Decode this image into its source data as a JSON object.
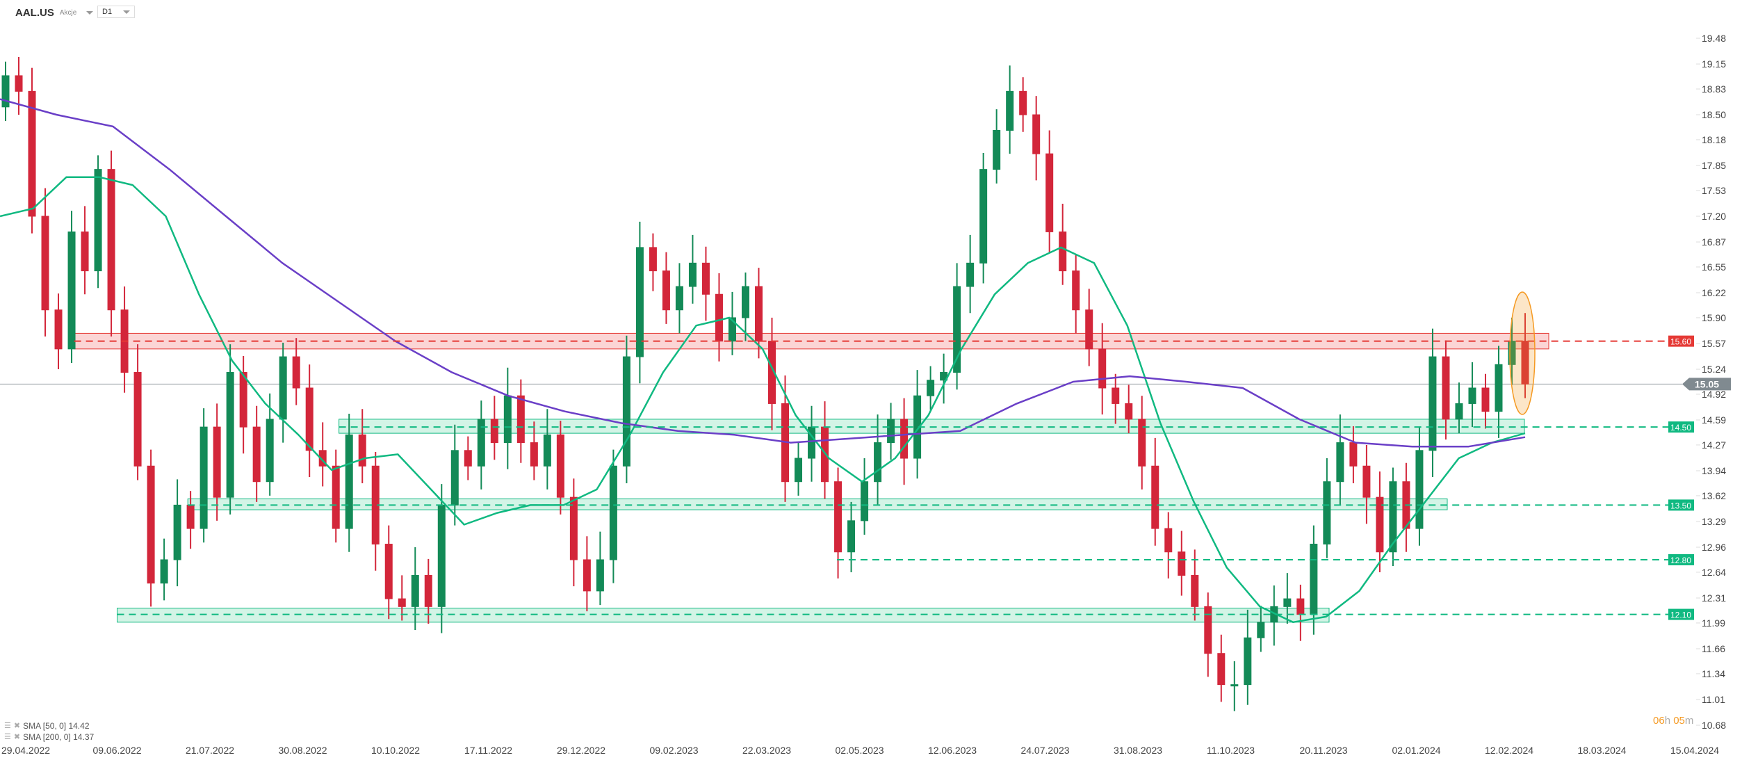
{
  "header": {
    "symbol": "AAL.US",
    "type": "Akcje",
    "timeframe": "D1"
  },
  "legend": [
    {
      "label": "SMA [50, 0] 14.42",
      "color": "#10b981"
    },
    {
      "label": "SMA [200, 0] 14.37",
      "color": "#6a3fc7"
    }
  ],
  "countdown": {
    "h": "06",
    "h_unit": "h",
    "m": "05",
    "m_unit": "m"
  },
  "colors": {
    "up": "#138a57",
    "down": "#d3263a",
    "support": "#10b981",
    "resistance": "#e53935",
    "sma50": "#10b981",
    "sma200": "#6a3fc7",
    "last_price": "#808a90",
    "highlight": "#f59a23"
  },
  "chart_data": {
    "type": "candlestick",
    "title": "",
    "ylim": [
      10.68,
      19.48
    ],
    "y_ticks": [
      "19.48",
      "19.15",
      "18.83",
      "18.50",
      "18.18",
      "17.85",
      "17.53",
      "17.20",
      "16.87",
      "16.55",
      "16.22",
      "15.90",
      "15.57",
      "15.24",
      "14.92",
      "14.59",
      "14.27",
      "13.94",
      "13.62",
      "13.29",
      "12.96",
      "12.64",
      "12.31",
      "11.99",
      "11.66",
      "11.34",
      "11.01",
      "10.68"
    ],
    "x_ticks": [
      "29.04.2022",
      "09.06.2022",
      "21.07.2022",
      "30.08.2022",
      "10.10.2022",
      "17.11.2022",
      "29.12.2022",
      "09.02.2023",
      "22.03.2023",
      "02.05.2023",
      "12.06.2023",
      "24.07.2023",
      "31.08.2023",
      "11.10.2023",
      "20.11.2023",
      "02.01.2024",
      "12.02.2024",
      "18.03.2024",
      "15.04.2024"
    ],
    "first_open": 18.6,
    "closes": [
      19.0,
      18.8,
      17.2,
      16.0,
      15.5,
      17.0,
      16.5,
      17.8,
      16.0,
      15.2,
      14.0,
      12.5,
      12.8,
      13.5,
      13.2,
      14.5,
      13.6,
      15.2,
      14.5,
      13.8,
      14.6,
      15.4,
      15.0,
      14.2,
      14.0,
      13.2,
      14.4,
      14.0,
      13.0,
      12.3,
      12.2,
      12.6,
      12.2,
      13.5,
      14.2,
      14.0,
      14.6,
      14.3,
      14.9,
      14.3,
      14.0,
      14.4,
      13.6,
      12.8,
      12.4,
      12.8,
      14.0,
      15.4,
      16.8,
      16.5,
      16.0,
      16.3,
      16.6,
      16.2,
      15.6,
      15.9,
      16.3,
      15.6,
      14.8,
      13.8,
      14.1,
      14.5,
      13.8,
      12.9,
      13.3,
      13.8,
      14.3,
      14.6,
      14.1,
      14.9,
      15.1,
      15.2,
      16.3,
      16.6,
      17.8,
      18.3,
      18.8,
      18.5,
      18.0,
      17.0,
      16.5,
      16.0,
      15.5,
      15.0,
      14.8,
      14.6,
      14.0,
      13.2,
      12.9,
      12.6,
      12.2,
      11.6,
      11.2,
      11.2,
      11.8,
      12.0,
      12.2,
      12.3,
      12.1,
      13.0,
      13.8,
      14.3,
      14.0,
      13.6,
      12.9,
      13.8,
      13.2,
      14.2,
      15.4,
      14.6,
      14.8,
      15.0,
      14.7,
      15.3,
      15.6,
      15.05
    ],
    "series": [
      {
        "name": "SMA [50, 0]",
        "last": 14.42,
        "values": [
          17.2,
          17.3,
          17.7,
          17.7,
          17.6,
          17.2,
          16.2,
          15.35,
          14.8,
          14.4,
          13.95,
          14.1,
          14.15,
          13.7,
          13.25,
          13.4,
          13.5,
          13.5,
          13.7,
          14.4,
          15.2,
          15.8,
          15.9,
          15.5,
          14.65,
          14.1,
          13.8,
          14.1,
          14.65,
          15.5,
          16.2,
          16.6,
          16.8,
          16.6,
          15.8,
          14.55,
          13.55,
          12.7,
          12.2,
          12.0,
          12.07,
          12.4,
          13.0,
          13.55,
          14.1,
          14.3,
          14.42
        ]
      },
      {
        "name": "SMA [200, 0]",
        "last": 14.37,
        "values": [
          18.7,
          18.5,
          18.35,
          17.8,
          17.2,
          16.6,
          16.1,
          15.6,
          15.2,
          14.9,
          14.7,
          14.55,
          14.45,
          14.4,
          14.3,
          14.35,
          14.4,
          14.45,
          14.8,
          15.08,
          15.15,
          15.08,
          15.0,
          14.6,
          14.3,
          14.25,
          14.25,
          14.37
        ]
      }
    ],
    "zones": [
      {
        "type": "resistance",
        "label": "15.60",
        "level": 15.6,
        "low": 15.5,
        "high": 15.7,
        "from": "21.05.2022"
      },
      {
        "type": "support",
        "label": "14.50",
        "level": 14.5,
        "low": 14.42,
        "high": 14.6,
        "from": "15.09.2022"
      },
      {
        "type": "support",
        "label": "13.50",
        "level": 13.5,
        "low": 13.44,
        "high": 13.58,
        "from": "11.07.2022"
      },
      {
        "type": "support",
        "label": "12.80",
        "level": 12.8,
        "line_only": true,
        "from": "22.04.2023"
      },
      {
        "type": "support",
        "label": "12.10",
        "level": 12.1,
        "low": 12.0,
        "high": 12.18,
        "from": "09.06.2022"
      }
    ],
    "last_price": "15.05"
  }
}
